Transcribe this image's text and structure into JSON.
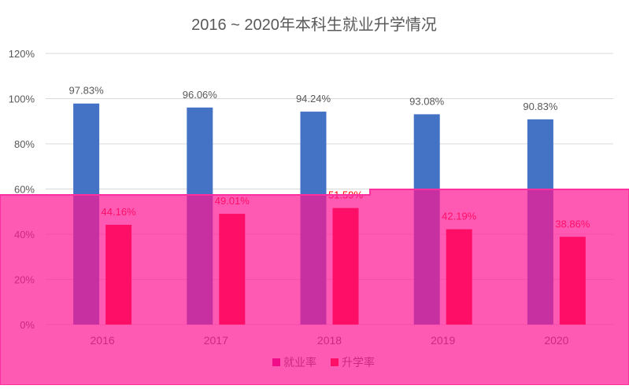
{
  "chart_data": {
    "type": "bar",
    "title": "2016 ~ 2020年本科生就业升学情况",
    "categories": [
      "2016",
      "2017",
      "2018",
      "2019",
      "2020"
    ],
    "series": [
      {
        "name": "就业率",
        "values": [
          97.83,
          96.06,
          94.24,
          93.08,
          90.83
        ],
        "labels": [
          "97.83%",
          "96.06%",
          "94.24%",
          "93.08%",
          "90.83%"
        ],
        "color": "#4472C4"
      },
      {
        "name": "升学率",
        "values": [
          44.16,
          49.01,
          51.59,
          42.19,
          38.86
        ],
        "labels": [
          "44.16%",
          "49.01%",
          "51.59%",
          "42.19%",
          "38.86%"
        ],
        "color": "#FF0000"
      }
    ],
    "y_ticks": [
      "0%",
      "20%",
      "40%",
      "60%",
      "80%",
      "100%",
      "120%"
    ],
    "ylim": [
      0,
      120
    ],
    "grid": true,
    "legend": "bottom",
    "xlabel": "",
    "ylabel": ""
  },
  "overlay": {
    "color": "#FF1493",
    "opacity": 0.7,
    "employment_bar_color_under_overlay": "#C8006E"
  }
}
